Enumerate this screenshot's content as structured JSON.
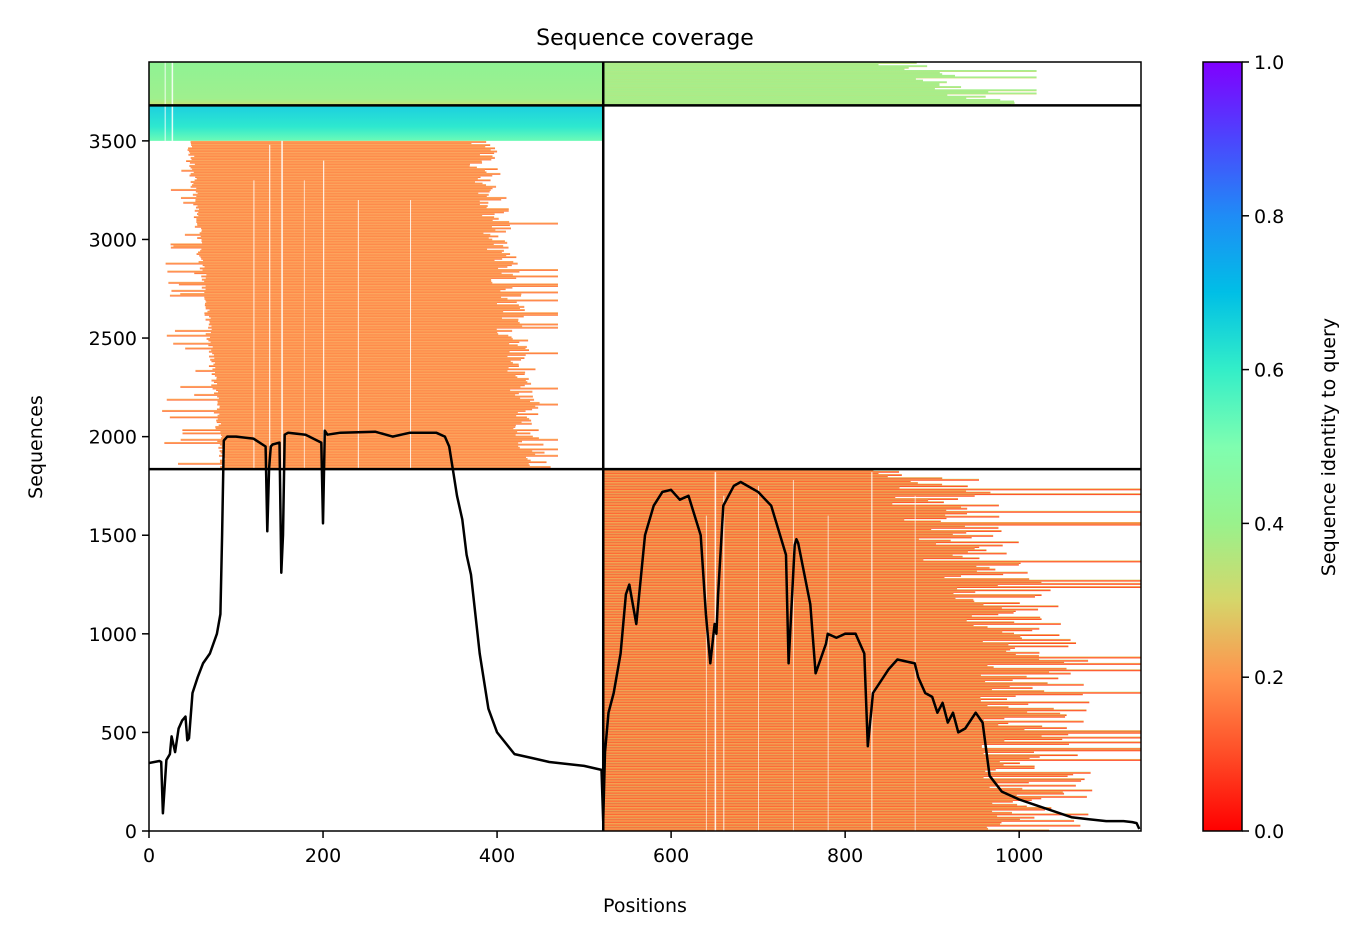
{
  "chart_data": {
    "type": "heatmap",
    "title": "Sequence coverage",
    "xlabel": "Positions",
    "ylabel": "Sequences",
    "xlim": [
      0,
      1140
    ],
    "ylim": [
      0,
      3900
    ],
    "x_ticks": [
      0,
      200,
      400,
      600,
      800,
      1000
    ],
    "y_ticks": [
      0,
      500,
      1000,
      1500,
      2000,
      2500,
      3000,
      3500
    ],
    "colorbar": {
      "label": "Sequence identity to query",
      "colormap": "rainbow_r",
      "range": [
        0,
        1
      ],
      "ticks": [
        "0.0",
        "0.2",
        "0.4",
        "0.6",
        "0.8",
        "1.0"
      ]
    },
    "block_boundaries": {
      "x": 522,
      "y": [
        1835,
        3680
      ]
    },
    "blocks": [
      {
        "x": [
          0,
          522
        ],
        "y": [
          3680,
          3900
        ],
        "identity": 0.45
      },
      {
        "x": [
          0,
          522
        ],
        "y": [
          3500,
          3680
        ],
        "identity": 0.62
      },
      {
        "x": [
          0,
          522
        ],
        "y": [
          1835,
          3500
        ],
        "identity": 0.15,
        "x_start_range": [
          15,
          85
        ],
        "x_end_range": [
          345,
          470
        ]
      },
      {
        "x": [
          522,
          1140
        ],
        "y": [
          3680,
          3900
        ],
        "identity": 0.42,
        "x_end_range": [
          800,
          1020
        ]
      },
      {
        "x": [
          522,
          1140
        ],
        "y": [
          0,
          1835
        ],
        "identity": 0.12,
        "x_end_range": [
          770,
          1140
        ]
      }
    ],
    "coverage_line": {
      "x": [
        0,
        12,
        14,
        16,
        20,
        24,
        26,
        30,
        34,
        38,
        42,
        44,
        46,
        50,
        56,
        62,
        70,
        78,
        82,
        84,
        86,
        90,
        100,
        120,
        134,
        136,
        138,
        140,
        142,
        150,
        152,
        154,
        156,
        160,
        180,
        198,
        200,
        202,
        205,
        220,
        260,
        280,
        300,
        330,
        340,
        345,
        350,
        354,
        360,
        365,
        370,
        380,
        390,
        400,
        420,
        440,
        460,
        500,
        520,
        522,
        524,
        528,
        534,
        542,
        548,
        552,
        560,
        570,
        580,
        590,
        600,
        610,
        620,
        634,
        640,
        645,
        650,
        652,
        654,
        660,
        672,
        680,
        700,
        715,
        732,
        735,
        742,
        744,
        746,
        760,
        766,
        778,
        780,
        790,
        800,
        812,
        822,
        826,
        832,
        850,
        860,
        880,
        884,
        892,
        900,
        906,
        912,
        918,
        924,
        930,
        938,
        950,
        958,
        966,
        980,
        1000,
        1020,
        1040,
        1060,
        1080,
        1100,
        1120,
        1130,
        1135,
        1138
      ],
      "y": [
        345,
        355,
        350,
        90,
        360,
        390,
        480,
        400,
        520,
        560,
        580,
        460,
        470,
        700,
        780,
        850,
        900,
        1000,
        1100,
        1500,
        1980,
        2000,
        2000,
        1990,
        1950,
        1520,
        1840,
        1950,
        1960,
        1970,
        1310,
        1500,
        2010,
        2020,
        2010,
        1970,
        1560,
        2030,
        2010,
        2020,
        2025,
        2000,
        2020,
        2020,
        2000,
        1950,
        1810,
        1700,
        1580,
        1400,
        1300,
        900,
        620,
        500,
        390,
        370,
        350,
        330,
        310,
        50,
        400,
        600,
        700,
        900,
        1200,
        1250,
        1050,
        1500,
        1650,
        1720,
        1730,
        1680,
        1700,
        1500,
        1100,
        850,
        1050,
        1000,
        1200,
        1650,
        1750,
        1770,
        1720,
        1650,
        1400,
        850,
        1450,
        1480,
        1460,
        1150,
        800,
        950,
        1000,
        980,
        1000,
        1000,
        900,
        430,
        700,
        820,
        870,
        850,
        780,
        700,
        680,
        600,
        650,
        550,
        600,
        500,
        520,
        600,
        550,
        280,
        200,
        160,
        130,
        100,
        70,
        60,
        50,
        50,
        45,
        40,
        10
      ]
    }
  }
}
